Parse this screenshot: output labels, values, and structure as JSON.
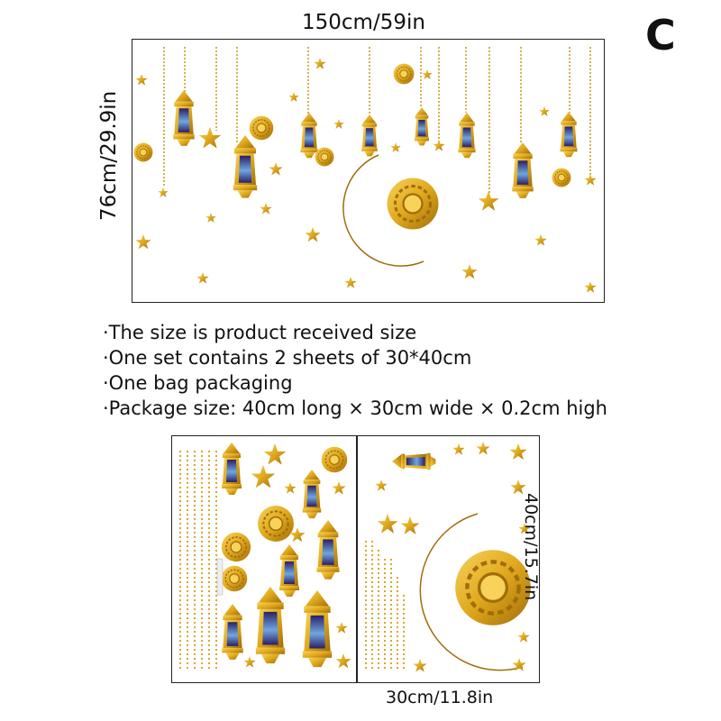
{
  "variant_label": "C",
  "main_dimensions": {
    "width": "150cm/59in",
    "height": "76cm/29.9in"
  },
  "specs": [
    "·The size is product received size",
    "·One set contains 2 sheets of 30*40cm",
    "·One bag packaging",
    "·Package size: 40cm long × 30cm wide × 0.2cm high"
  ],
  "sheet_dimensions": {
    "height": "40cm/15.7in",
    "width": "30cm/11.8in"
  },
  "colors": {
    "gold": "#e0a81c",
    "gold_dark": "#a06d0a",
    "lantern_glass": "#3a2f7a",
    "lantern_glow": "#7fb6e6",
    "frame": "#222222"
  }
}
